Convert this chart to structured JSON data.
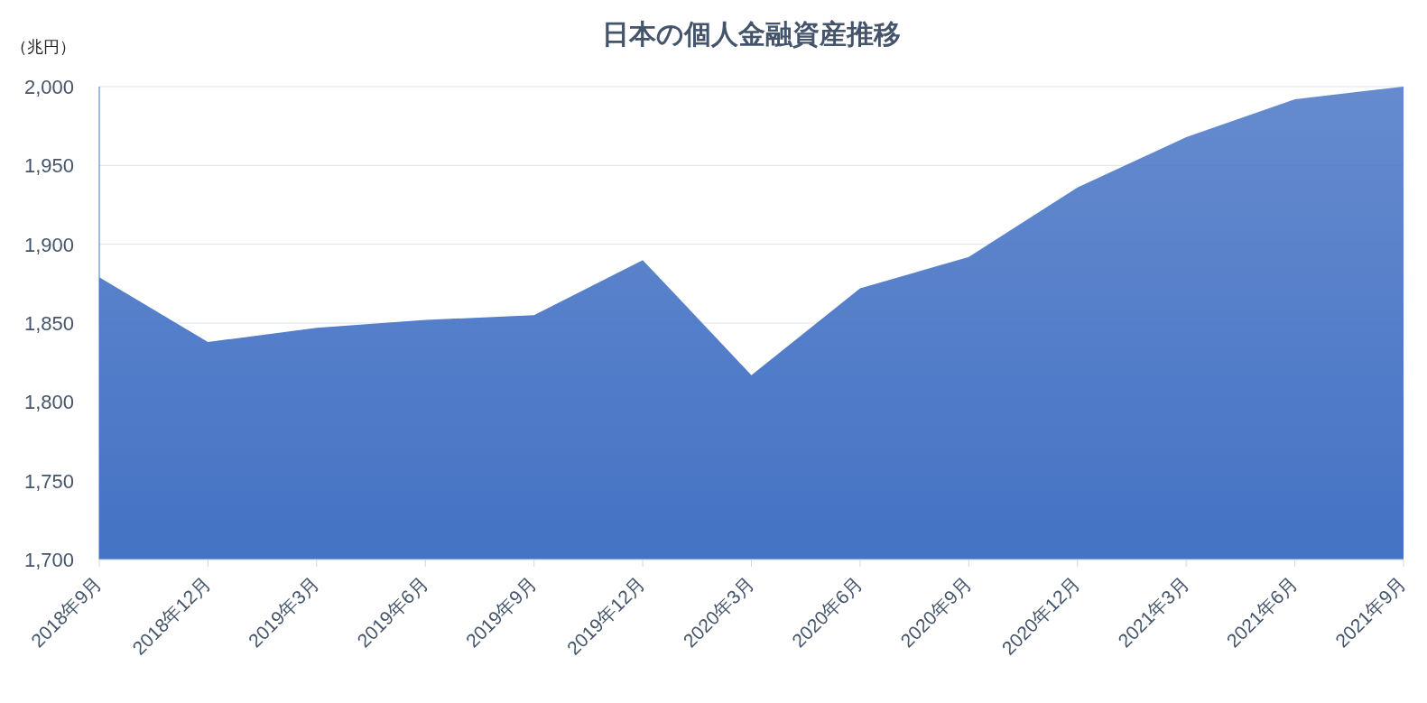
{
  "chart_data": {
    "type": "area",
    "title": "日本の個人金融資産推移",
    "ylabel": "（兆円）",
    "categories": [
      "2018年9月",
      "2018年12月",
      "2019年3月",
      "2019年6月",
      "2019年9月",
      "2019年12月",
      "2020年3月",
      "2020年6月",
      "2020年9月",
      "2020年12月",
      "2021年3月",
      "2021年6月",
      "2021年9月"
    ],
    "series": [
      {
        "color": "#4472c4",
        "values": [
          1879,
          1838,
          1847,
          1852,
          1855,
          1890,
          1817,
          1872,
          1892,
          1936,
          1968,
          1992,
          2000
        ]
      }
    ],
    "ylim": [
      1700,
      2000
    ],
    "yticks": [
      {
        "value": 1700,
        "label": "1,700"
      },
      {
        "value": 1750,
        "label": "1,750"
      },
      {
        "value": 1800,
        "label": "1,800"
      },
      {
        "value": 1850,
        "label": "1,850"
      },
      {
        "value": 1900,
        "label": "1,900"
      },
      {
        "value": 1950,
        "label": "1,950"
      },
      {
        "value": 2000,
        "label": "2,000"
      }
    ],
    "grid": "y"
  }
}
